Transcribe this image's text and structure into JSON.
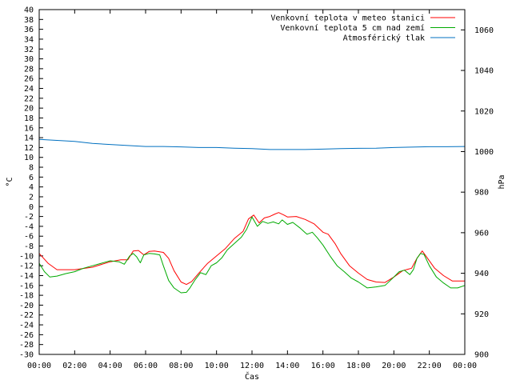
{
  "chart_data": {
    "type": "line",
    "xlabel": "Čas",
    "ylabel": "°C",
    "y2label": "hPa",
    "ylim": [
      -30,
      40
    ],
    "y2lim": [
      900,
      1070
    ],
    "xlim": [
      0,
      24
    ],
    "x_tick_labels": [
      "00:00",
      "02:00",
      "04:00",
      "06:00",
      "08:00",
      "10:00",
      "12:00",
      "14:00",
      "16:00",
      "18:00",
      "20:00",
      "22:00",
      "00:00"
    ],
    "y_ticks": [
      -30,
      -28,
      -26,
      -24,
      -22,
      -20,
      -18,
      -16,
      -14,
      -12,
      -10,
      -8,
      -6,
      -4,
      -2,
      0,
      2,
      4,
      6,
      8,
      10,
      12,
      14,
      16,
      18,
      20,
      22,
      24,
      26,
      28,
      30,
      32,
      34,
      36,
      38,
      40
    ],
    "y2_ticks": [
      900,
      920,
      940,
      960,
      980,
      1000,
      1020,
      1040,
      1060
    ],
    "legend_position": "top-right",
    "series": [
      {
        "name": "Venkovní teplota v meteo stanici",
        "color": "#ff0000",
        "axis": "y",
        "points": [
          [
            0,
            -9.5
          ],
          [
            0.5,
            -11.5
          ],
          [
            1,
            -12.8
          ],
          [
            2,
            -12.8
          ],
          [
            3,
            -12.3
          ],
          [
            4,
            -11.2
          ],
          [
            4.6,
            -10.8
          ],
          [
            5,
            -10.8
          ],
          [
            5.3,
            -9.0
          ],
          [
            5.6,
            -8.9
          ],
          [
            5.9,
            -9.8
          ],
          [
            6.2,
            -9.1
          ],
          [
            6.5,
            -9.0
          ],
          [
            7,
            -9.3
          ],
          [
            7.3,
            -10.5
          ],
          [
            7.6,
            -13
          ],
          [
            8,
            -15.3
          ],
          [
            8.3,
            -15.8
          ],
          [
            8.6,
            -15.2
          ],
          [
            9,
            -13.5
          ],
          [
            9.5,
            -11.5
          ],
          [
            10,
            -10
          ],
          [
            10.5,
            -8.5
          ],
          [
            11,
            -6.5
          ],
          [
            11.5,
            -5
          ],
          [
            11.8,
            -2.5
          ],
          [
            12.1,
            -1.7
          ],
          [
            12.4,
            -3.3
          ],
          [
            12.7,
            -2.3
          ],
          [
            13,
            -2.0
          ],
          [
            13.3,
            -1.5
          ],
          [
            13.5,
            -1.2
          ],
          [
            13.8,
            -1.7
          ],
          [
            14,
            -2.1
          ],
          [
            14.5,
            -2.0
          ],
          [
            15,
            -2.6
          ],
          [
            15.5,
            -3.5
          ],
          [
            16,
            -5.2
          ],
          [
            16.3,
            -5.6
          ],
          [
            16.7,
            -7.6
          ],
          [
            17,
            -9.5
          ],
          [
            17.5,
            -12
          ],
          [
            18,
            -13.5
          ],
          [
            18.5,
            -14.8
          ],
          [
            19,
            -15.3
          ],
          [
            19.5,
            -15.4
          ],
          [
            20,
            -14.3
          ],
          [
            20.5,
            -13
          ],
          [
            21,
            -12.5
          ],
          [
            21.3,
            -10.5
          ],
          [
            21.6,
            -9.0
          ],
          [
            21.9,
            -10.5
          ],
          [
            22.3,
            -12.5
          ],
          [
            22.8,
            -14
          ],
          [
            23.3,
            -15.1
          ],
          [
            24,
            -15.1
          ]
        ]
      },
      {
        "name": "Venkovní teplota 5 cm nad zemí",
        "color": "#00aa00",
        "axis": "y",
        "points": [
          [
            0,
            -11.5
          ],
          [
            0.3,
            -13.2
          ],
          [
            0.6,
            -14.3
          ],
          [
            1,
            -14.1
          ],
          [
            1.5,
            -13.6
          ],
          [
            2,
            -13.2
          ],
          [
            2.5,
            -12.5
          ],
          [
            3,
            -12
          ],
          [
            3.5,
            -11.5
          ],
          [
            4,
            -11
          ],
          [
            4.5,
            -11.2
          ],
          [
            4.8,
            -11.7
          ],
          [
            5.1,
            -10.0
          ],
          [
            5.3,
            -9.5
          ],
          [
            5.5,
            -10.2
          ],
          [
            5.7,
            -11.4
          ],
          [
            5.9,
            -9.8
          ],
          [
            6.2,
            -9.5
          ],
          [
            6.5,
            -9.6
          ],
          [
            6.8,
            -9.8
          ],
          [
            7,
            -12
          ],
          [
            7.3,
            -15
          ],
          [
            7.6,
            -16.5
          ],
          [
            8,
            -17.5
          ],
          [
            8.3,
            -17.4
          ],
          [
            8.5,
            -16.5
          ],
          [
            8.8,
            -14.8
          ],
          [
            9.1,
            -13.4
          ],
          [
            9.4,
            -13.8
          ],
          [
            9.7,
            -12
          ],
          [
            10,
            -11.4
          ],
          [
            10.3,
            -10.4
          ],
          [
            10.6,
            -8.8
          ],
          [
            11,
            -7.5
          ],
          [
            11.4,
            -6.2
          ],
          [
            11.7,
            -4.6
          ],
          [
            12,
            -2.1
          ],
          [
            12.3,
            -4.0
          ],
          [
            12.6,
            -3.0
          ],
          [
            12.9,
            -3.4
          ],
          [
            13.2,
            -3.1
          ],
          [
            13.5,
            -3.5
          ],
          [
            13.7,
            -2.7
          ],
          [
            14,
            -3.6
          ],
          [
            14.3,
            -3.2
          ],
          [
            14.7,
            -4.3
          ],
          [
            15.1,
            -5.6
          ],
          [
            15.4,
            -5.2
          ],
          [
            15.7,
            -6.4
          ],
          [
            16,
            -7.8
          ],
          [
            16.4,
            -10
          ],
          [
            16.8,
            -12
          ],
          [
            17.2,
            -13.2
          ],
          [
            17.6,
            -14.5
          ],
          [
            18,
            -15.3
          ],
          [
            18.5,
            -16.5
          ],
          [
            19,
            -16.3
          ],
          [
            19.5,
            -16.0
          ],
          [
            20,
            -14.3
          ],
          [
            20.3,
            -13.2
          ],
          [
            20.6,
            -12.9
          ],
          [
            20.9,
            -13.8
          ],
          [
            21.1,
            -12.8
          ],
          [
            21.3,
            -10.5
          ],
          [
            21.5,
            -9.5
          ],
          [
            21.7,
            -9.7
          ],
          [
            22,
            -12
          ],
          [
            22.4,
            -14.3
          ],
          [
            22.8,
            -15.5
          ],
          [
            23.2,
            -16.5
          ],
          [
            23.6,
            -16.5
          ],
          [
            24,
            -16
          ]
        ]
      },
      {
        "name": "Atmosférický tlak",
        "color": "#0070c0",
        "axis": "y2",
        "points": [
          [
            0,
            1006
          ],
          [
            1,
            1005.5
          ],
          [
            2,
            1005
          ],
          [
            3,
            1004
          ],
          [
            4,
            1003.5
          ],
          [
            5,
            1003
          ],
          [
            6,
            1002.5
          ],
          [
            7,
            1002.5
          ],
          [
            8,
            1002.3
          ],
          [
            9,
            1002
          ],
          [
            10,
            1002
          ],
          [
            11,
            1001.7
          ],
          [
            12,
            1001.5
          ],
          [
            13,
            1001
          ],
          [
            14,
            1001
          ],
          [
            15,
            1001
          ],
          [
            16,
            1001.2
          ],
          [
            17,
            1001.5
          ],
          [
            18,
            1001.6
          ],
          [
            19,
            1001.7
          ],
          [
            20,
            1002
          ],
          [
            21,
            1002.2
          ],
          [
            22,
            1002.4
          ],
          [
            23,
            1002.4
          ],
          [
            24,
            1002.5
          ]
        ]
      }
    ]
  }
}
